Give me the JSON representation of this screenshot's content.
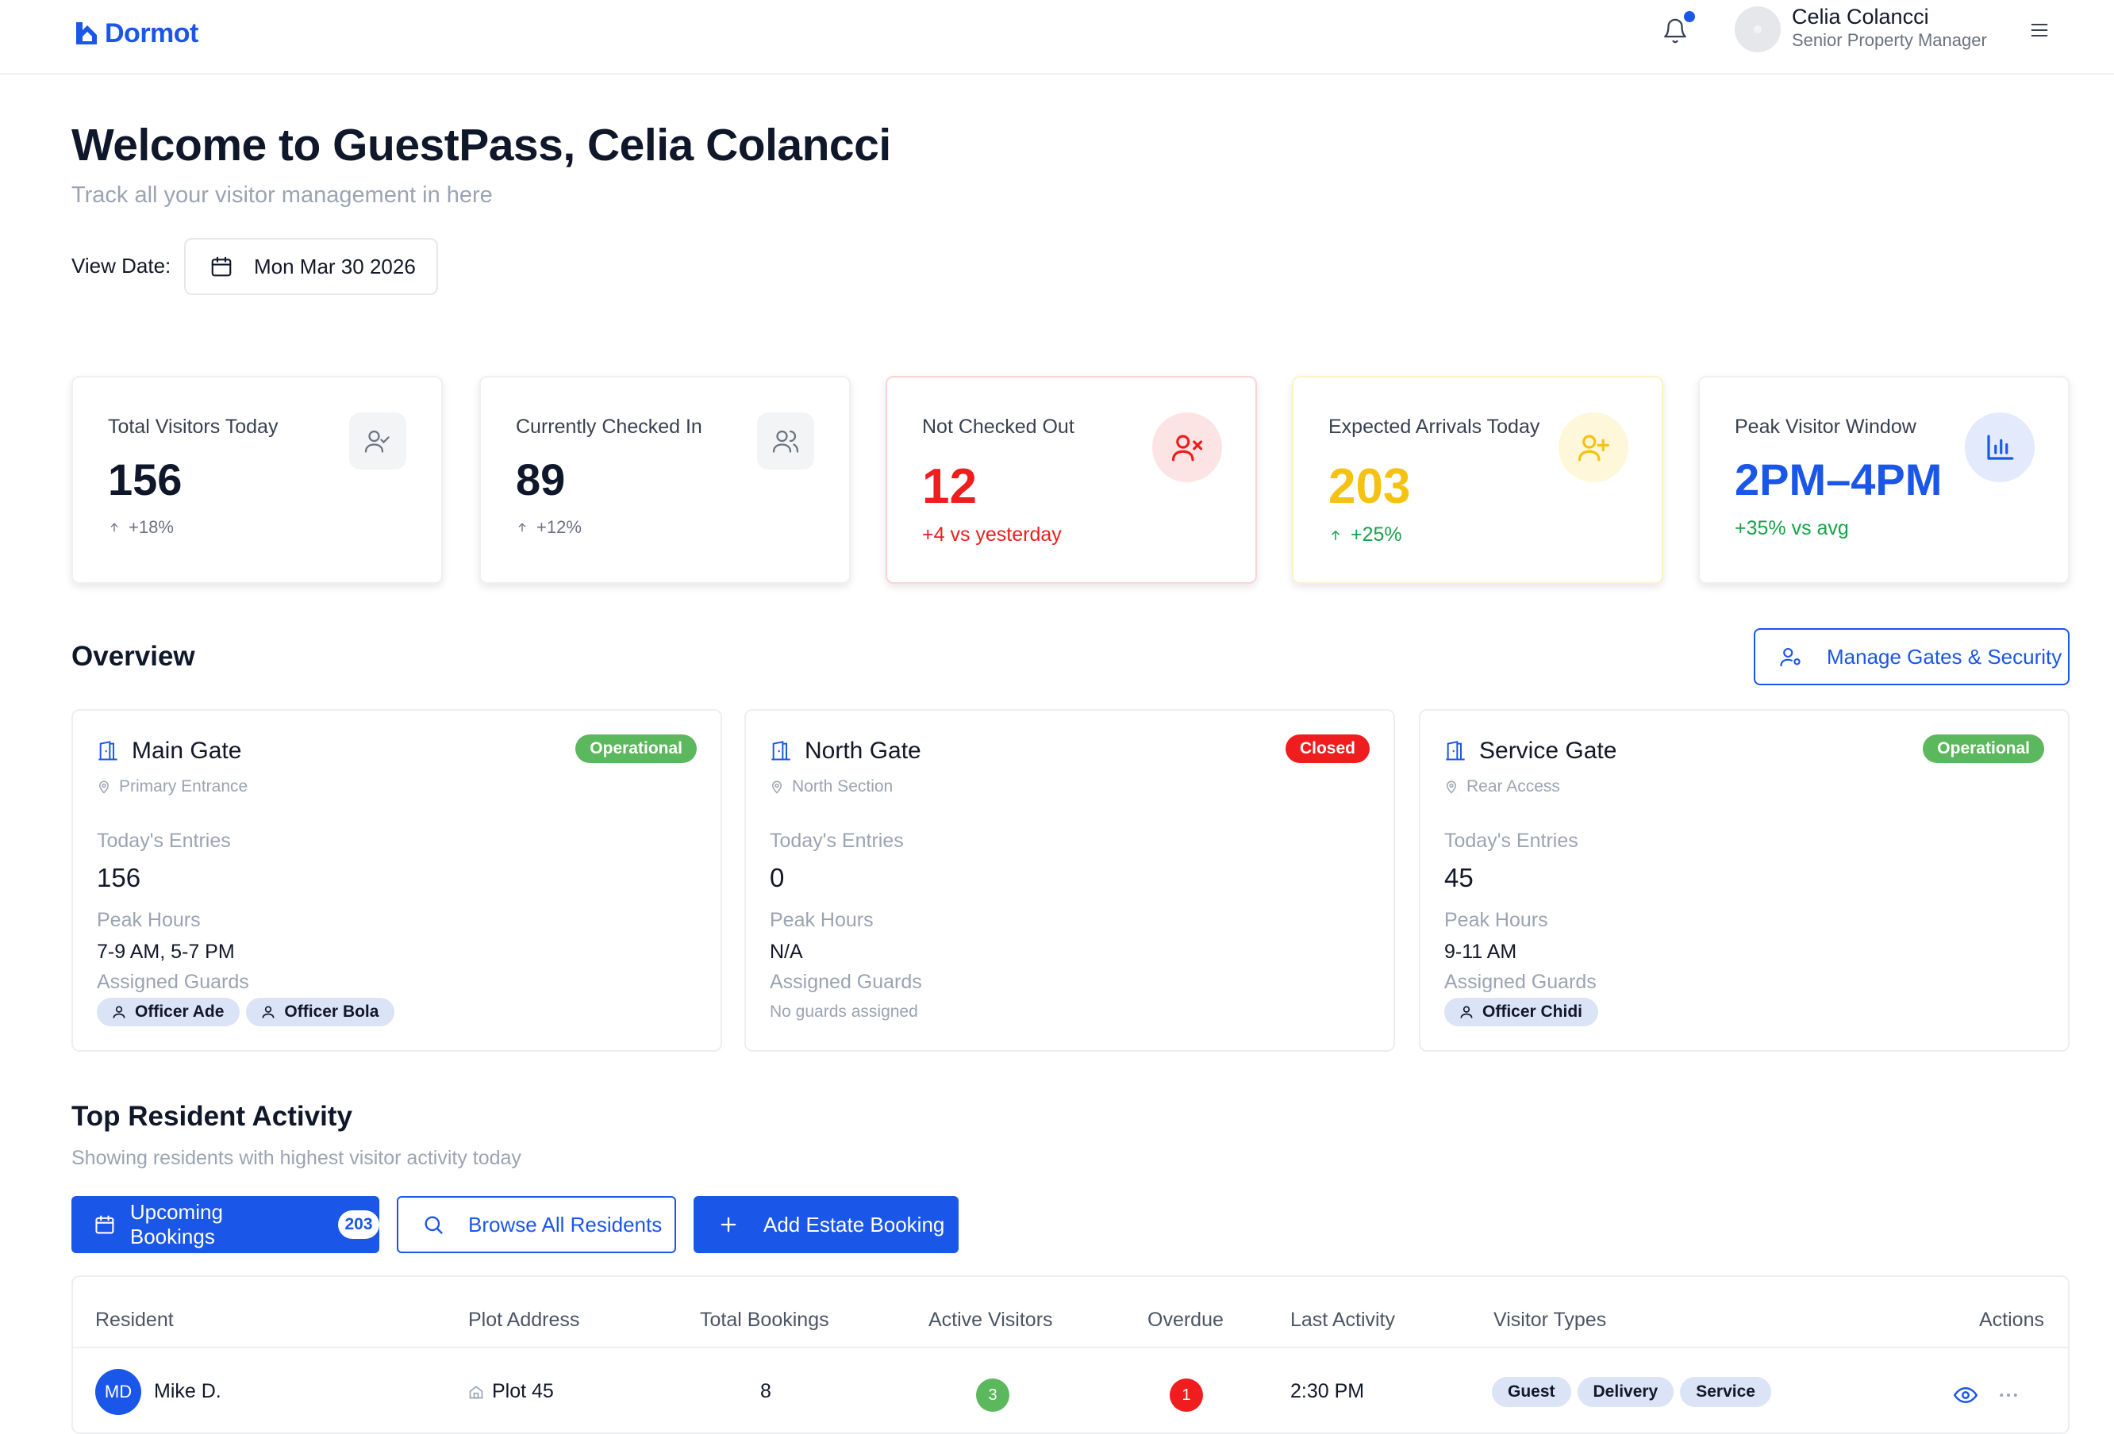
{
  "brand": {
    "name": "Dormot",
    "color": "#1a56e8"
  },
  "header": {
    "user_name": "Celia Colancci",
    "user_role": "Senior Property Manager",
    "notification_icon": "bell-icon",
    "menu_icon": "hamburger-icon"
  },
  "welcome": {
    "title": "Welcome to GuestPass, Celia Colancci",
    "subtitle": "Track all your visitor management in here",
    "view_date_label": "View Date:",
    "view_date_value": "Mon Mar 30 2026"
  },
  "stats": [
    {
      "label": "Total Visitors Today",
      "value": "156",
      "trend": "+18%",
      "icon": "user-check-icon"
    },
    {
      "label": "Currently Checked In",
      "value": "89",
      "trend": "+12%",
      "icon": "users-icon"
    },
    {
      "label": "Not Checked Out",
      "value": "12",
      "trend": "+4 vs yesterday",
      "icon": "user-x-icon",
      "color": "#ef1d1d"
    },
    {
      "label": "Expected Arrivals Today",
      "value": "203",
      "trend": "+25%",
      "icon": "user-plus-icon",
      "color": "#f5c211"
    },
    {
      "label": "Peak Visitor Window",
      "value": "2PM–4PM",
      "trend": "+35% vs avg",
      "icon": "bar-chart-icon",
      "color": "#1a56e8"
    }
  ],
  "overview": {
    "title": "Overview",
    "manage_button": "Manage Gates & Security",
    "labels": {
      "entries": "Today's Entries",
      "peak": "Peak Hours",
      "guards": "Assigned Guards"
    },
    "gates": [
      {
        "name": "Main Gate",
        "status": "Operational",
        "status_color": "#5cb85c",
        "location": "Primary Entrance",
        "entries": "156",
        "peak": "7-9 AM, 5-7 PM",
        "guards": [
          "Officer Ade",
          "Officer Bola"
        ]
      },
      {
        "name": "North Gate",
        "status": "Closed",
        "status_color": "#ef1d1d",
        "location": "North Section",
        "entries": "0",
        "peak": "N/A",
        "guards": [],
        "no_guards": "No guards assigned"
      },
      {
        "name": "Service Gate",
        "status": "Operational",
        "status_color": "#5cb85c",
        "location": "Rear Access",
        "entries": "45",
        "peak": "9-11 AM",
        "guards": [
          "Officer Chidi"
        ]
      }
    ]
  },
  "residents": {
    "title": "Top Resident Activity",
    "subtitle": "Showing residents with highest visitor activity today",
    "buttons": {
      "upcoming": "Upcoming Bookings",
      "upcoming_count": "203",
      "browse": "Browse All Residents",
      "add": "Add Estate Booking"
    },
    "columns": [
      "Resident",
      "Plot Address",
      "Total Bookings",
      "Active Visitors",
      "Overdue",
      "Last Activity",
      "Visitor Types",
      "Actions"
    ],
    "rows": [
      {
        "initials": "MD",
        "name": "Mike D.",
        "plot": "Plot 45",
        "total": "8",
        "active": "3",
        "overdue": "1",
        "last": "2:30 PM",
        "types": [
          "Guest",
          "Delivery",
          "Service"
        ]
      }
    ]
  }
}
